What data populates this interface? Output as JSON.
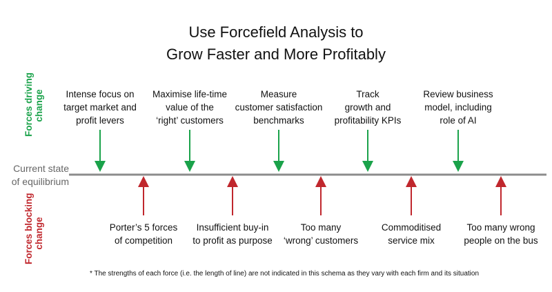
{
  "title": {
    "line1": "Use Forcefield Analysis to",
    "line2": "Grow Faster and More Profitably"
  },
  "side_labels": {
    "driving": {
      "line1": "Forces driving",
      "line2": "change",
      "color": "#1aa24a"
    },
    "blocking": {
      "line1": "Forces blocking",
      "line2": "change",
      "color": "#c0272d"
    }
  },
  "equilibrium": {
    "line1": "Current state",
    "line2": "of equilibrium",
    "color": "#808080"
  },
  "driving_forces": [
    {
      "lines": [
        "Intense focus on",
        "target market and",
        "profit levers"
      ]
    },
    {
      "lines": [
        "Maximise life-time",
        "value of the",
        "‘right’ customers"
      ]
    },
    {
      "lines": [
        "Measure",
        "customer satisfaction",
        "benchmarks"
      ]
    },
    {
      "lines": [
        "Track",
        "growth and",
        "profitability KPIs"
      ]
    },
    {
      "lines": [
        "Review business",
        "model, including",
        "role of AI"
      ]
    }
  ],
  "blocking_forces": [
    {
      "lines": [
        "Porter’s 5 forces",
        "of competition"
      ]
    },
    {
      "lines": [
        "Insufficient buy-in",
        "to profit as purpose"
      ]
    },
    {
      "lines": [
        "Too many",
        "‘wrong’ customers"
      ]
    },
    {
      "lines": [
        "Commoditised",
        "service mix"
      ]
    },
    {
      "lines": [
        "Too many wrong",
        "people on the bus"
      ]
    }
  ],
  "footnote": "* The strengths of each force (i.e. the length of line) are not indicated in this schema as they vary with each firm and its situation"
}
